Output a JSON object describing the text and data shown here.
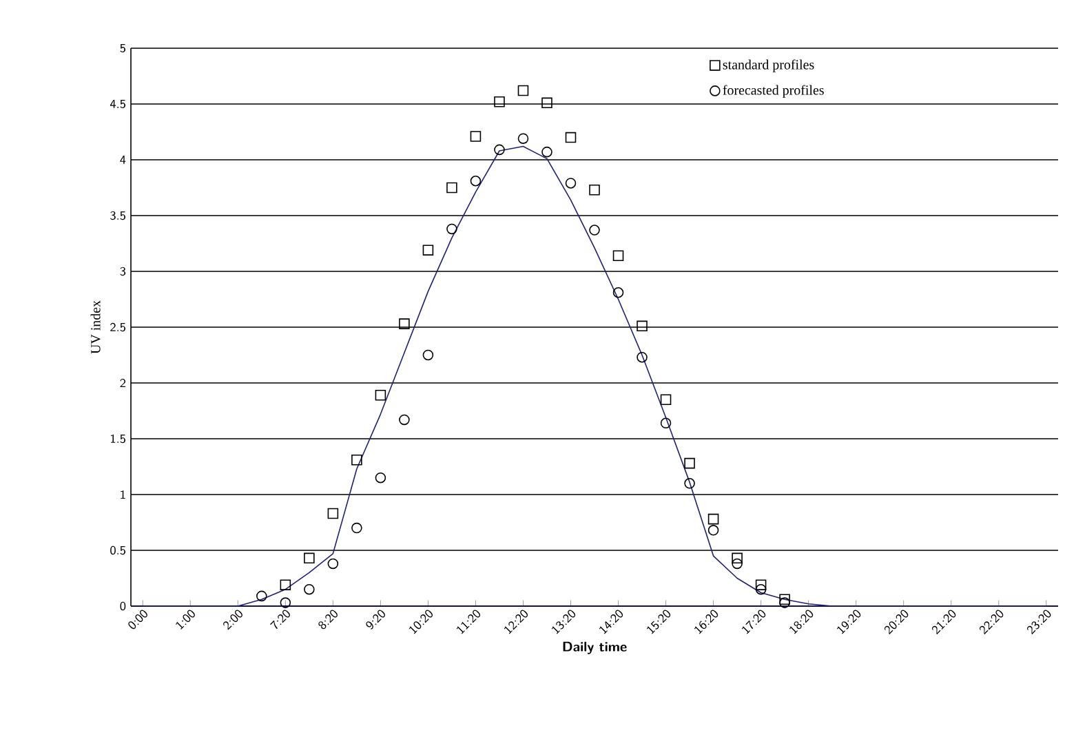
{
  "chart_data": {
    "type": "scatter",
    "xlabel": "Daily time",
    "ylabel": "UV index",
    "categories": [
      "0:00",
      null,
      "1:00",
      null,
      "2:00",
      null,
      "7:20",
      null,
      "8:20",
      null,
      "9:20",
      null,
      "10:20",
      null,
      "11:20",
      null,
      "12:20",
      null,
      "13:20",
      null,
      "14:20",
      null,
      "15:20",
      null,
      "16:20",
      null,
      "17:20",
      null,
      "18:20",
      null,
      "19:20",
      null,
      "20:20",
      null,
      "21:20",
      null,
      "22:20",
      null,
      "23:20"
    ],
    "ylim": [
      0,
      5
    ],
    "yticks": [
      0,
      0.5,
      1,
      1.5,
      2,
      2.5,
      3,
      3.5,
      4,
      4.5,
      5
    ],
    "grid": "y",
    "legend": "top right",
    "series": [
      {
        "name": "standard profiles",
        "marker": "square",
        "color": "#000000",
        "values": [
          null,
          null,
          null,
          null,
          null,
          null,
          0.19,
          0.43,
          0.83,
          1.31,
          1.89,
          2.53,
          3.19,
          3.75,
          4.21,
          4.52,
          4.62,
          4.51,
          4.2,
          3.73,
          3.14,
          2.51,
          1.85,
          1.28,
          0.78,
          0.43,
          0.19,
          0.06,
          null,
          null,
          null,
          null,
          null,
          null,
          null,
          null,
          null,
          null,
          null
        ]
      },
      {
        "name": "forecasted profiles",
        "marker": "circle",
        "color": "#000000",
        "values": [
          null,
          null,
          null,
          null,
          null,
          0.09,
          0.03,
          0.15,
          0.38,
          0.7,
          1.15,
          1.67,
          2.25,
          3.38,
          3.81,
          4.09,
          4.19,
          4.07,
          3.79,
          3.37,
          2.81,
          2.23,
          1.64,
          1.1,
          0.68,
          0.38,
          0.15,
          0.03,
          null,
          null,
          null,
          null,
          null,
          null,
          null,
          null,
          null,
          null,
          null
        ]
      },
      {
        "type": "line",
        "marker": "none",
        "line_style": "solid",
        "color": "#1f1f7a",
        "values": [
          0,
          0,
          0,
          0,
          0,
          0.06,
          0.15,
          0.3,
          0.47,
          1.23,
          1.72,
          2.27,
          2.82,
          3.3,
          3.71,
          4.08,
          4.12,
          4.01,
          3.64,
          3.21,
          2.75,
          2.25,
          1.69,
          1.11,
          0.45,
          0.25,
          0.12,
          0.06,
          0.02,
          0,
          0,
          0,
          0,
          0,
          0,
          0,
          0,
          0,
          0
        ]
      }
    ]
  }
}
